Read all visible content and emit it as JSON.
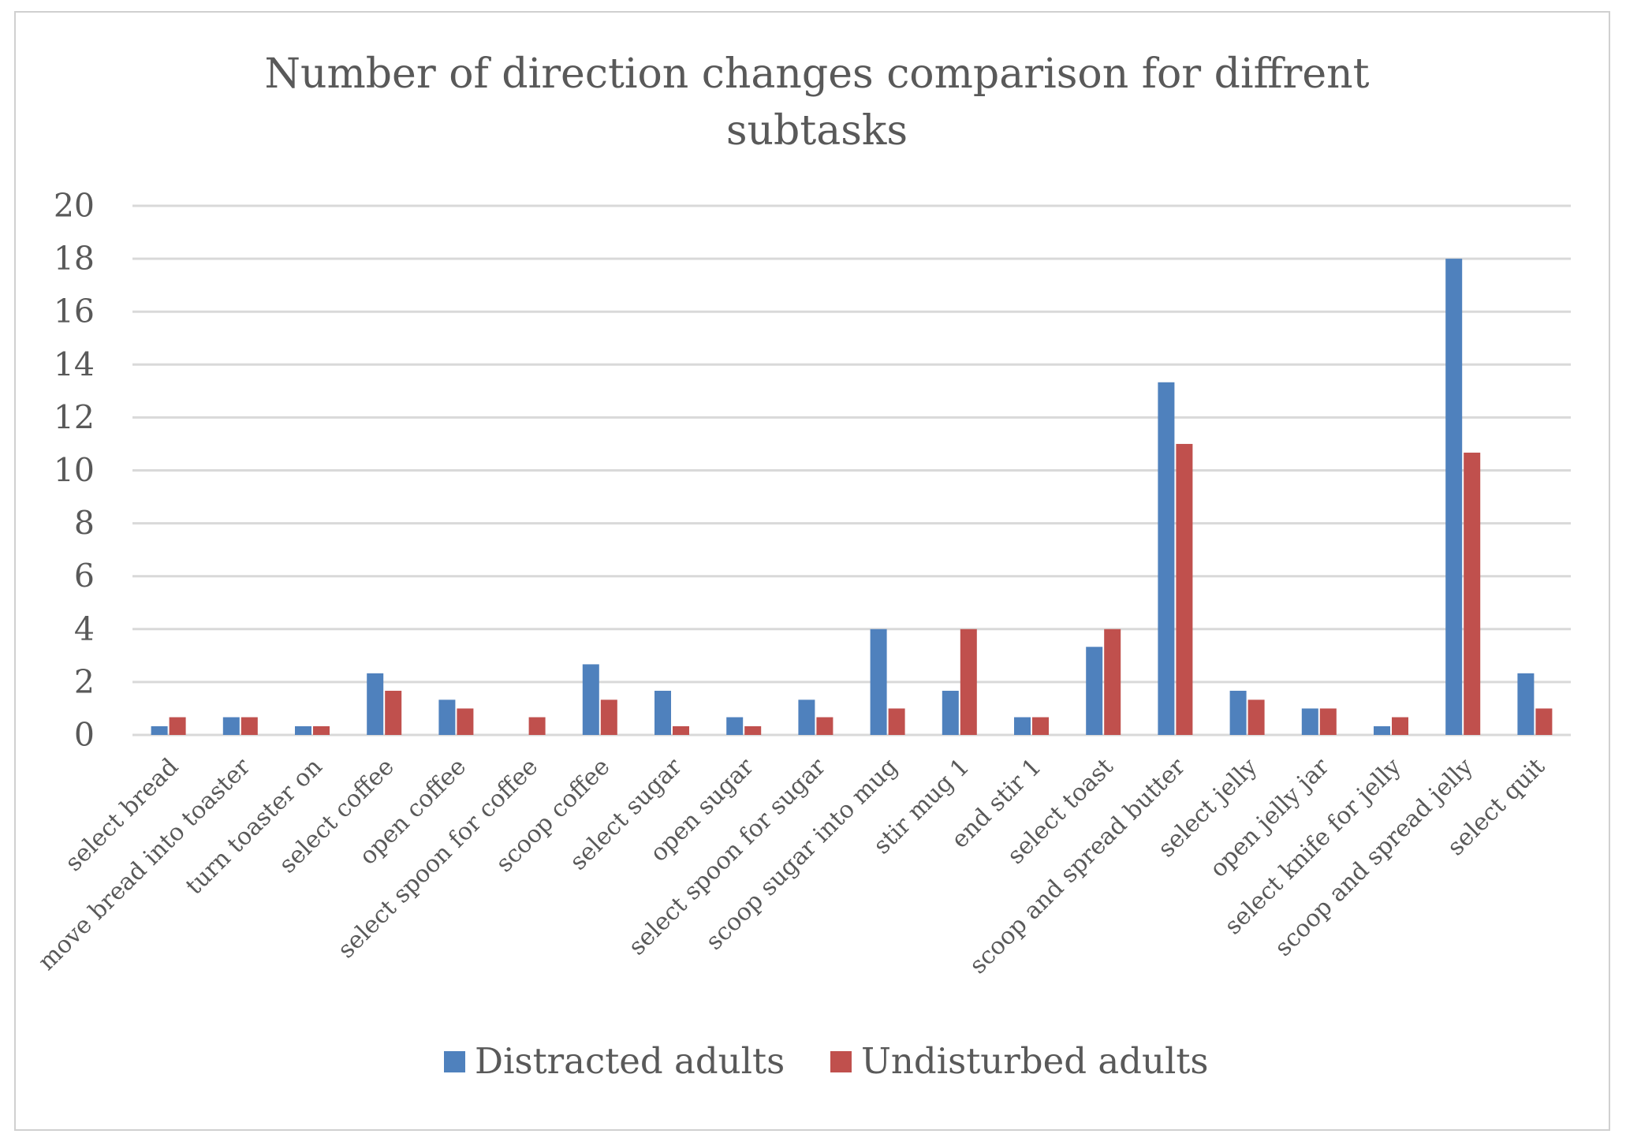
{
  "chart_data": {
    "type": "bar",
    "title": "Number of direction changes comparison for diffrent subtasks",
    "title_lines": [
      "Number of direction changes comparison for diffrent",
      "subtasks"
    ],
    "xlabel": "",
    "ylabel": "",
    "ylim": [
      0,
      20
    ],
    "yticks": [
      "0",
      "2",
      "4",
      "6",
      "8",
      "10",
      "12",
      "14",
      "16",
      "18",
      "20"
    ],
    "grid": true,
    "legend_position": "bottom",
    "categories": [
      "select bread",
      "move bread into toaster",
      "turn toaster on",
      "select coffee",
      "open coffee",
      "select spoon for coffee",
      "scoop coffee",
      "select sugar",
      "open sugar",
      "select spoon for sugar",
      "scoop sugar into mug",
      "stir mug 1",
      "end stir 1",
      "select toast",
      "scoop and spread butter",
      "select jelly",
      "open jelly jar",
      "select knife for jelly",
      "scoop and spread jelly",
      "select quit"
    ],
    "series": [
      {
        "name": "Distracted adults",
        "color": "#4f81bd",
        "values": [
          0.33,
          0.67,
          0.33,
          2.33,
          1.33,
          0,
          2.67,
          1.67,
          0.67,
          1.33,
          4,
          1.67,
          0.67,
          3.33,
          13.33,
          1.67,
          1,
          0.33,
          18,
          2.33
        ]
      },
      {
        "name": "Undisturbed adults",
        "color": "#c0504d",
        "values": [
          0.67,
          0.67,
          0.33,
          1.67,
          1,
          0.67,
          1.33,
          0.33,
          0.33,
          0.67,
          1,
          4,
          0.67,
          4,
          11,
          1.33,
          1,
          0.67,
          10.67,
          1
        ]
      }
    ]
  }
}
